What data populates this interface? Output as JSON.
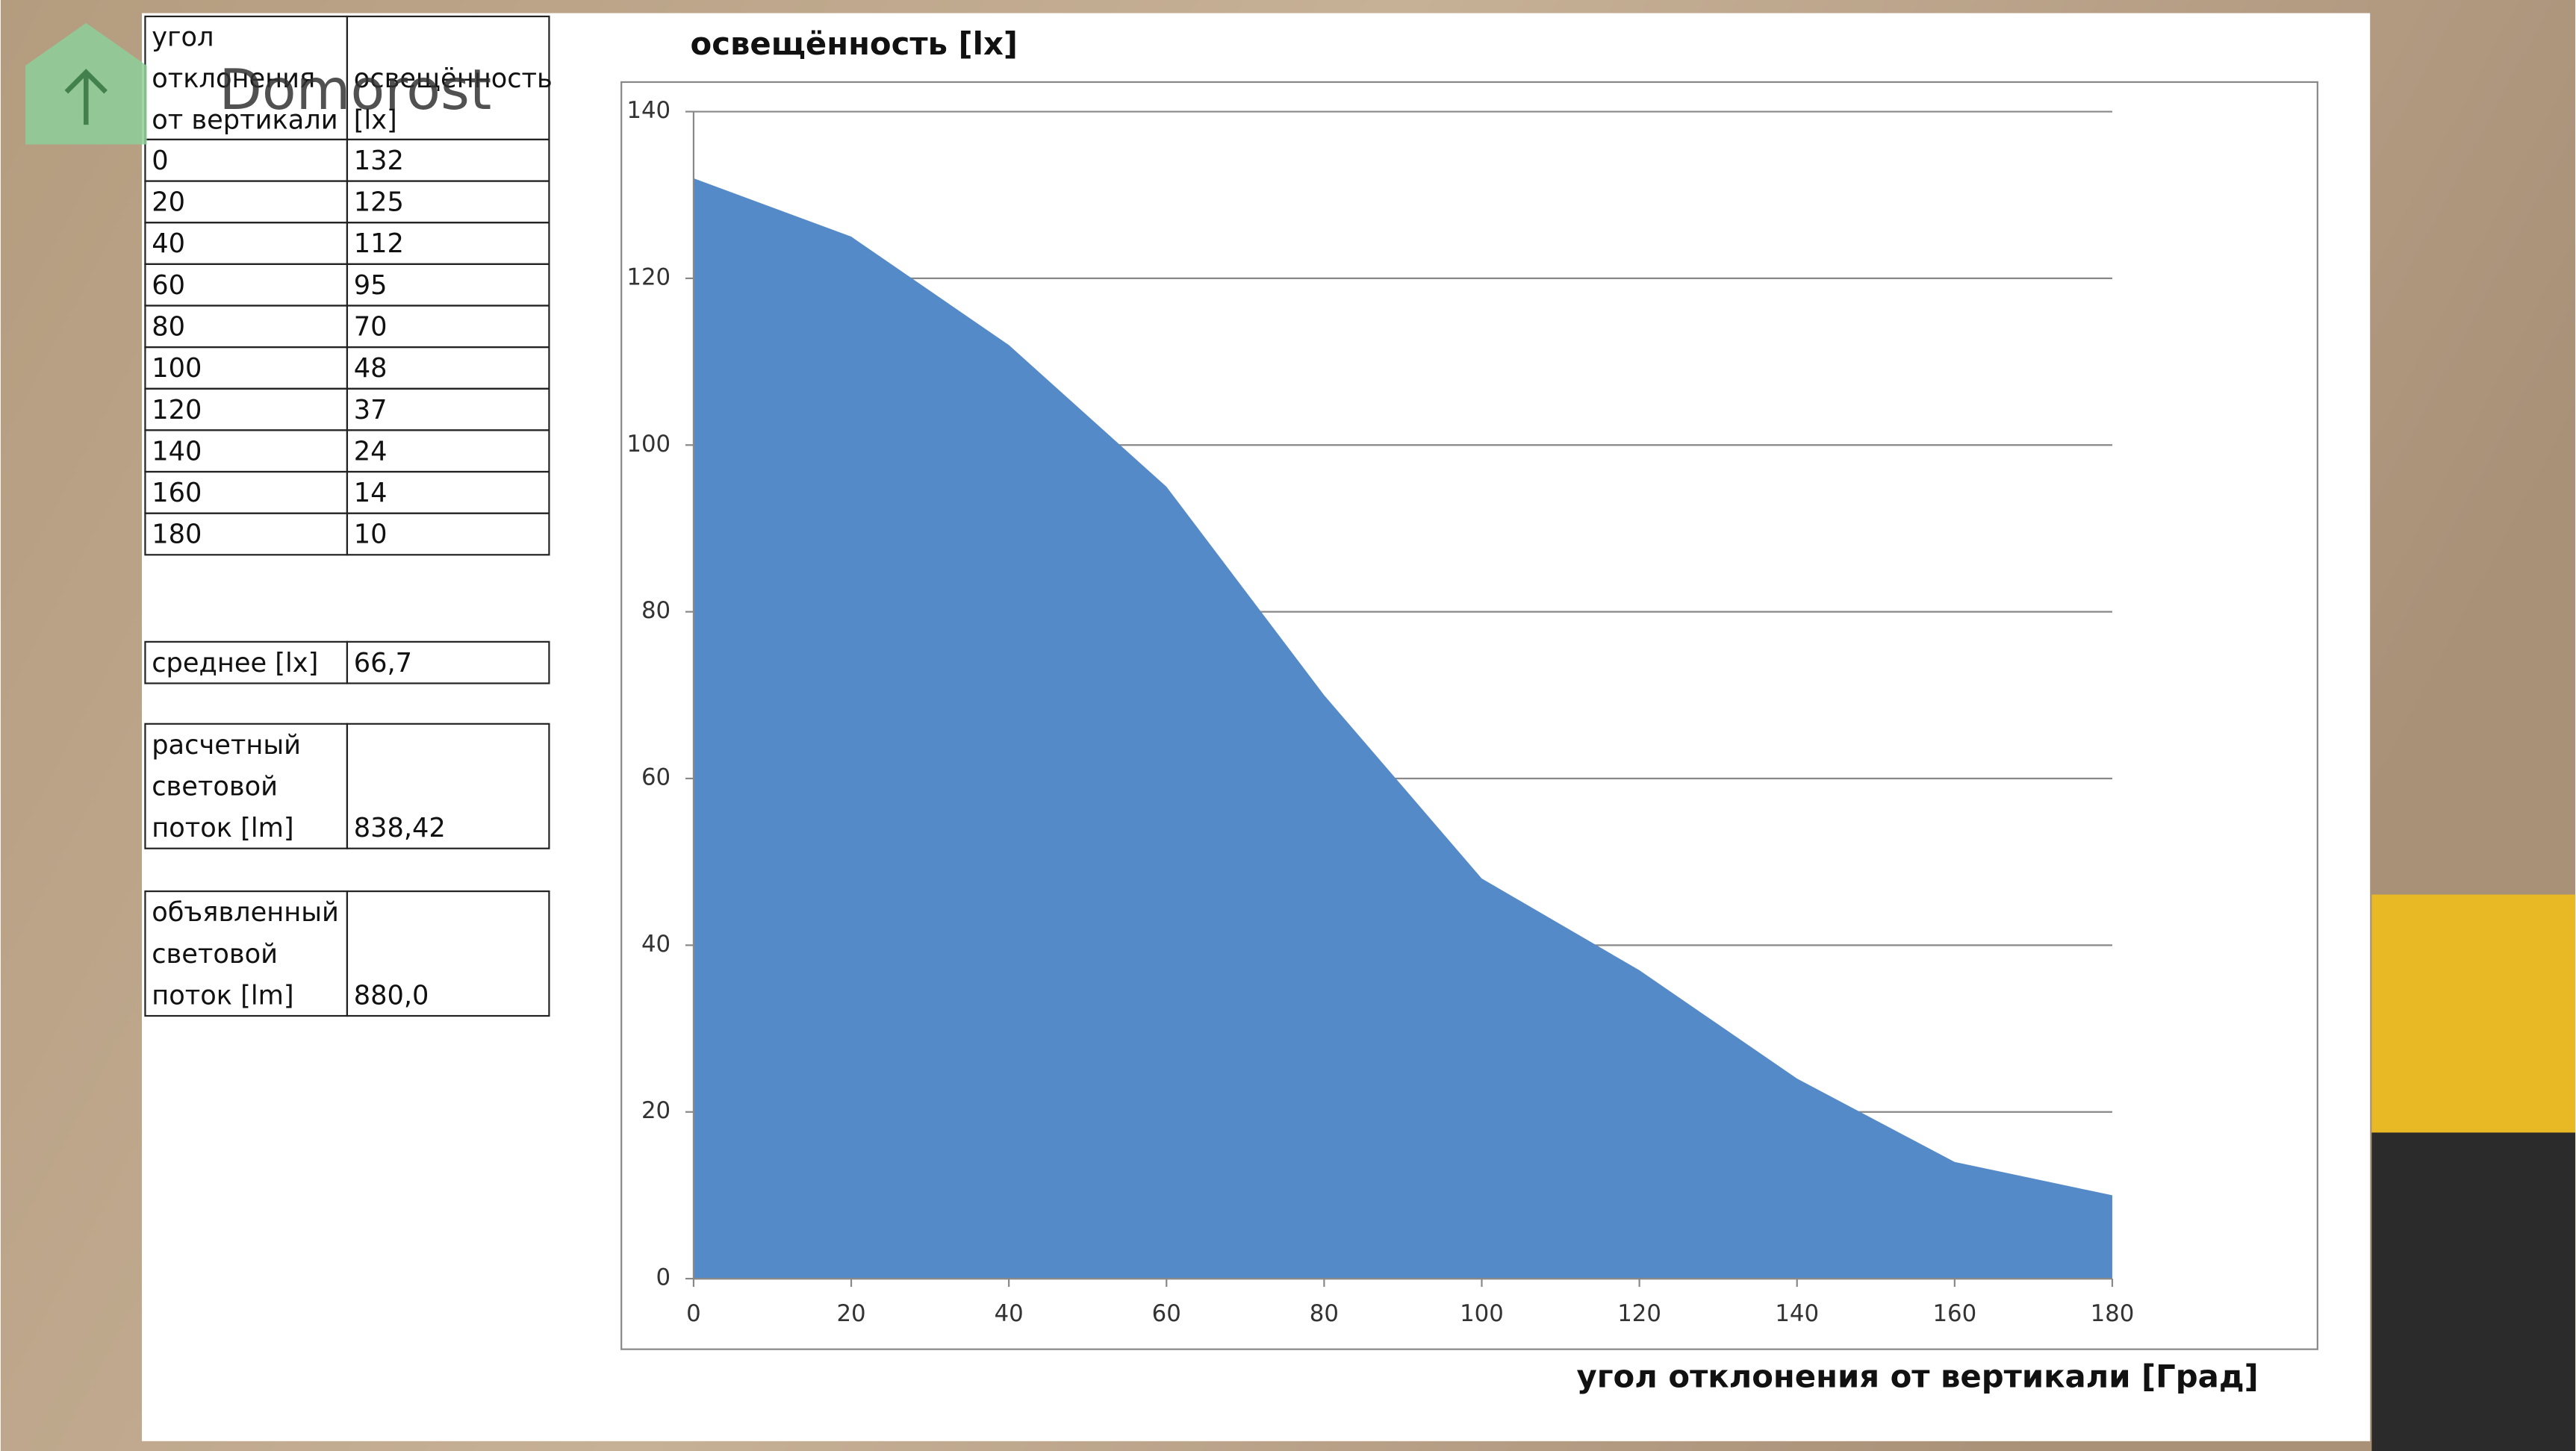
{
  "logo": "Domorost",
  "table": {
    "header": [
      [
        "угол",
        "отклонения",
        "от вертикали"
      ],
      [
        "освещённость",
        "[lx]"
      ]
    ],
    "rows": [
      [
        0,
        132
      ],
      [
        20,
        125
      ],
      [
        40,
        112
      ],
      [
        60,
        95
      ],
      [
        80,
        70
      ],
      [
        100,
        48
      ],
      [
        120,
        37
      ],
      [
        140,
        24
      ],
      [
        160,
        14
      ],
      [
        180,
        10
      ]
    ]
  },
  "summary": [
    {
      "label": [
        "среднее  [lx]"
      ],
      "value": "66,7"
    },
    {
      "label": [
        "расчетный",
        "световой",
        "поток  [lm]"
      ],
      "value": "838,42"
    },
    {
      "label": [
        "объявленный",
        "световой",
        "поток  [lm]"
      ],
      "value": "880,0"
    }
  ],
  "chart_data": {
    "type": "area",
    "title": "освещённость [lx]",
    "x_label": "угол отклонения от вертикали  [Град]",
    "x": [
      0,
      20,
      40,
      60,
      80,
      100,
      120,
      140,
      160,
      180
    ],
    "values": [
      132,
      125,
      112,
      95,
      70,
      48,
      37,
      24,
      14,
      10
    ],
    "color": "#558ac8",
    "xlim": [
      0,
      180
    ],
    "xticks": [
      0,
      20,
      40,
      60,
      80,
      100,
      120,
      140,
      160,
      180
    ],
    "ylim": [
      0,
      140
    ],
    "yticks": [
      0,
      20,
      40,
      60,
      80,
      100,
      120,
      140
    ],
    "grid": true
  }
}
